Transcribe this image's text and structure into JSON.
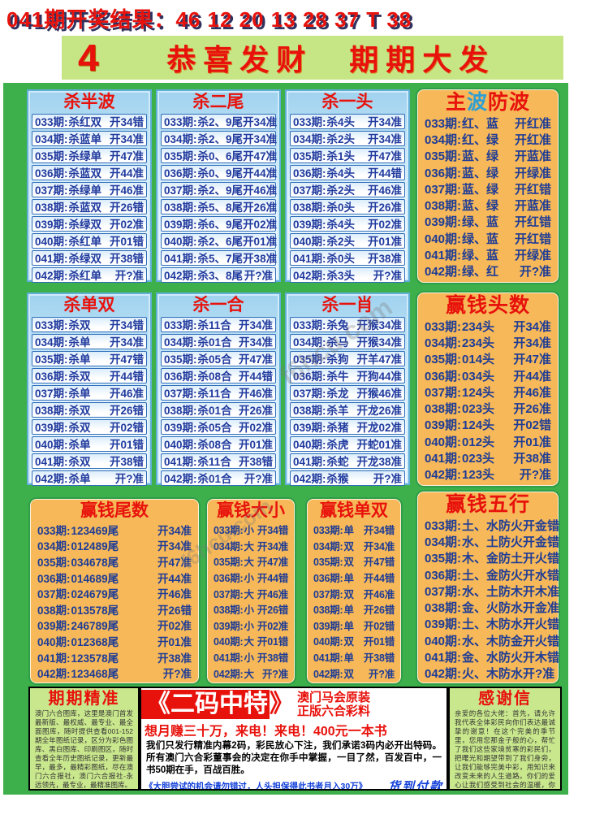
{
  "page": {
    "result_line": "041期开奖结果：46 12 20 13 28 37 T 38",
    "issue_number": "4",
    "header_title": "恭喜发财　期期大发"
  },
  "colors": {
    "accent_red": "#e8120c",
    "navy_text": "#1e3c96",
    "page_green": "#3db04b",
    "header_green": "#c6e585",
    "panel_blue": "#cfe9fb",
    "panel_orange": "#f6b858",
    "link_blue": "#1340d8"
  },
  "watermarks": [
    "f6hcu.com",
    "f6hcu.com"
  ],
  "panels": {
    "blue": [
      {
        "title": "杀半波",
        "rows": [
          {
            "p": "033期:",
            "k": "杀红双",
            "r": "开34错"
          },
          {
            "p": "034期:",
            "k": "杀蓝单",
            "r": "开34准"
          },
          {
            "p": "035期:",
            "k": "杀绿单",
            "r": "开47准"
          },
          {
            "p": "036期:",
            "k": "杀蓝双",
            "r": "开44准"
          },
          {
            "p": "037期:",
            "k": "杀绿单",
            "r": "开46准"
          },
          {
            "p": "038期:",
            "k": "杀蓝双",
            "r": "开26错"
          },
          {
            "p": "039期:",
            "k": "杀绿双",
            "r": "开02准"
          },
          {
            "p": "040期:",
            "k": "杀红单",
            "r": "开01错"
          },
          {
            "p": "041期:",
            "k": "杀绿双",
            "r": "开38错"
          },
          {
            "p": "042期:",
            "k": "杀红单",
            "r": "开?准"
          }
        ]
      },
      {
        "title": "杀二尾",
        "rows": [
          {
            "p": "033期:",
            "k": "杀2、9尾",
            "r": "开34准"
          },
          {
            "p": "034期:",
            "k": "杀2、9尾",
            "r": "开34准"
          },
          {
            "p": "035期:",
            "k": "杀0、6尾",
            "r": "开47准"
          },
          {
            "p": "036期:",
            "k": "杀0、9尾",
            "r": "开44准"
          },
          {
            "p": "037期:",
            "k": "杀2、9尾",
            "r": "开46准"
          },
          {
            "p": "038期:",
            "k": "杀5、8尾",
            "r": "开26准"
          },
          {
            "p": "039期:",
            "k": "杀6、9尾",
            "r": "开02准"
          },
          {
            "p": "040期:",
            "k": "杀2、6尾",
            "r": "开01准"
          },
          {
            "p": "041期:",
            "k": "杀5、7尾",
            "r": "开38准"
          },
          {
            "p": "042期:",
            "k": "杀3、8尾",
            "r": "开?准"
          }
        ]
      },
      {
        "title": "杀一头",
        "rows": [
          {
            "p": "033期:",
            "k": "杀4头",
            "r": "开34准"
          },
          {
            "p": "034期:",
            "k": "杀2头",
            "r": "开34准"
          },
          {
            "p": "035期:",
            "k": "杀1头",
            "r": "开47准"
          },
          {
            "p": "036期:",
            "k": "杀4头",
            "r": "开44错"
          },
          {
            "p": "037期:",
            "k": "杀2头",
            "r": "开46准"
          },
          {
            "p": "038期:",
            "k": "杀0头",
            "r": "开26准"
          },
          {
            "p": "039期:",
            "k": "杀4头",
            "r": "开02准"
          },
          {
            "p": "040期:",
            "k": "杀2头",
            "r": "开01准"
          },
          {
            "p": "041期:",
            "k": "杀0头",
            "r": "开38准"
          },
          {
            "p": "042期:",
            "k": "杀3头",
            "r": "开?准"
          }
        ]
      },
      {
        "title": "杀单双",
        "rows": [
          {
            "p": "033期:",
            "k": "杀双",
            "r": "开34错"
          },
          {
            "p": "034期:",
            "k": "杀单",
            "r": "开34准"
          },
          {
            "p": "035期:",
            "k": "杀单",
            "r": "开47错"
          },
          {
            "p": "036期:",
            "k": "杀双",
            "r": "开44错"
          },
          {
            "p": "037期:",
            "k": "杀单",
            "r": "开46准"
          },
          {
            "p": "038期:",
            "k": "杀双",
            "r": "开26错"
          },
          {
            "p": "039期:",
            "k": "杀双",
            "r": "开02错"
          },
          {
            "p": "040期:",
            "k": "杀单",
            "r": "开01错"
          },
          {
            "p": "041期:",
            "k": "杀双",
            "r": "开38错"
          },
          {
            "p": "042期:",
            "k": "杀单",
            "r": "开?准"
          }
        ]
      },
      {
        "title": "杀一合",
        "rows": [
          {
            "p": "033期:",
            "k": "杀11合",
            "r": "开34准"
          },
          {
            "p": "034期:",
            "k": "杀01合",
            "r": "开34准"
          },
          {
            "p": "035期:",
            "k": "杀05合",
            "r": "开47准"
          },
          {
            "p": "036期:",
            "k": "杀08合",
            "r": "开44错"
          },
          {
            "p": "037期:",
            "k": "杀11合",
            "r": "开46准"
          },
          {
            "p": "038期:",
            "k": "杀01合",
            "r": "开26准"
          },
          {
            "p": "039期:",
            "k": "杀05合",
            "r": "开02准"
          },
          {
            "p": "040期:",
            "k": "杀08合",
            "r": "开01准"
          },
          {
            "p": "041期:",
            "k": "杀11合",
            "r": "开38错"
          },
          {
            "p": "042期:",
            "k": "杀01合",
            "r": "开?准"
          }
        ]
      },
      {
        "title": "杀一肖",
        "rows": [
          {
            "p": "033期:",
            "k": "杀兔",
            "r": "开猴34准"
          },
          {
            "p": "034期:",
            "k": "杀马",
            "r": "开猴34准"
          },
          {
            "p": "035期:",
            "k": "杀狗",
            "r": "开羊47准"
          },
          {
            "p": "036期:",
            "k": "杀牛",
            "r": "开狗44准"
          },
          {
            "p": "037期:",
            "k": "杀龙",
            "r": "开猴46准"
          },
          {
            "p": "038期:",
            "k": "杀羊",
            "r": "开龙26准"
          },
          {
            "p": "039期:",
            "k": "杀猪",
            "r": "开龙02准"
          },
          {
            "p": "040期:",
            "k": "杀虎",
            "r": "开蛇01准"
          },
          {
            "p": "041期:",
            "k": "杀蛇",
            "r": "开龙38准"
          },
          {
            "p": "042期:",
            "k": "杀猴",
            "r": "开?准"
          }
        ]
      }
    ],
    "orange_right": [
      {
        "title": "主波防波",
        "title_parts": [
          {
            "t": "主",
            "c": "#e8120c"
          },
          {
            "t": "波",
            "c": "#2e9fd4"
          },
          {
            "t": "防",
            "c": "#e8120c"
          },
          {
            "t": "波",
            "c": "#e8120c"
          }
        ],
        "rows": [
          {
            "p": "033期:",
            "k": "红、蓝",
            "r": "开红准"
          },
          {
            "p": "034期:",
            "k": "红、绿",
            "r": "开红准"
          },
          {
            "p": "035期:",
            "k": "蓝、绿",
            "r": "开蓝准"
          },
          {
            "p": "036期:",
            "k": "蓝、绿",
            "r": "开绿准"
          },
          {
            "p": "037期:",
            "k": "蓝、绿",
            "r": "开红错"
          },
          {
            "p": "038期:",
            "k": "蓝、绿",
            "r": "开蓝准"
          },
          {
            "p": "039期:",
            "k": "绿、蓝",
            "r": "开红错"
          },
          {
            "p": "040期:",
            "k": "绿、蓝",
            "r": "开红错"
          },
          {
            "p": "041期:",
            "k": "绿、蓝",
            "r": "开绿准"
          },
          {
            "p": "042期:",
            "k": "绿、红",
            "r": "开?准"
          }
        ]
      },
      {
        "title": "赢钱头数",
        "rows": [
          {
            "p": "033期:",
            "k": "234头",
            "r": "开34准"
          },
          {
            "p": "034期:",
            "k": "234头",
            "r": "开34准"
          },
          {
            "p": "035期:",
            "k": "014头",
            "r": "开47准"
          },
          {
            "p": "036期:",
            "k": "034头",
            "r": "开44准"
          },
          {
            "p": "037期:",
            "k": "124头",
            "r": "开46准"
          },
          {
            "p": "038期:",
            "k": "023头",
            "r": "开26准"
          },
          {
            "p": "039期:",
            "k": "124头",
            "r": "开02错"
          },
          {
            "p": "040期:",
            "k": "012头",
            "r": "开01准"
          },
          {
            "p": "041期:",
            "k": "023头",
            "r": "开38准"
          },
          {
            "p": "042期:",
            "k": "123头",
            "r": "开?准"
          }
        ]
      },
      {
        "title": "赢钱五行",
        "rows": [
          {
            "p": "033期:",
            "k": "土、水防火",
            "r": "开金错"
          },
          {
            "p": "034期:",
            "k": "水、土防火",
            "r": "开金错"
          },
          {
            "p": "035期:",
            "k": "木、金防土",
            "r": "开火错"
          },
          {
            "p": "036期:",
            "k": "土、金防火",
            "r": "开水错"
          },
          {
            "p": "037期:",
            "k": "水、土防木",
            "r": "开木准"
          },
          {
            "p": "038期:",
            "k": "金、火防水",
            "r": "开金准"
          },
          {
            "p": "039期:",
            "k": "土、木防水",
            "r": "开火错"
          },
          {
            "p": "040期:",
            "k": "水、木防金",
            "r": "开火错"
          },
          {
            "p": "041期:",
            "k": "金、水防火",
            "r": "开木错"
          },
          {
            "p": "042期:",
            "k": "火、木防水",
            "r": "开?准"
          }
        ]
      }
    ],
    "orange_bottom": [
      {
        "title": "赢钱尾数",
        "rows": [
          {
            "p": "033期:",
            "k": "123469尾",
            "r": "开34准"
          },
          {
            "p": "034期:",
            "k": "012489尾",
            "r": "开34准"
          },
          {
            "p": "035期:",
            "k": "034678尾",
            "r": "开47准"
          },
          {
            "p": "036期:",
            "k": "014689尾",
            "r": "开44准"
          },
          {
            "p": "037期:",
            "k": "024679尾",
            "r": "开46准"
          },
          {
            "p": "038期:",
            "k": "013578尾",
            "r": "开26错"
          },
          {
            "p": "039期:",
            "k": "246789尾",
            "r": "开02准"
          },
          {
            "p": "040期:",
            "k": "012368尾",
            "r": "开01准"
          },
          {
            "p": "041期:",
            "k": "123578尾",
            "r": "开38准"
          },
          {
            "p": "042期:",
            "k": "123468尾",
            "r": "开?准"
          }
        ]
      },
      {
        "title": "赢钱大小",
        "rows": [
          {
            "p": "033期:",
            "k": "小",
            "r": "开34错"
          },
          {
            "p": "034期:",
            "k": "大",
            "r": "开34准"
          },
          {
            "p": "035期:",
            "k": "大",
            "r": "开47准"
          },
          {
            "p": "036期:",
            "k": "小",
            "r": "开44错"
          },
          {
            "p": "037期:",
            "k": "大",
            "r": "开46准"
          },
          {
            "p": "038期:",
            "k": "小",
            "r": "开26错"
          },
          {
            "p": "039期:",
            "k": "小",
            "r": "开02准"
          },
          {
            "p": "040期:",
            "k": "大",
            "r": "开01错"
          },
          {
            "p": "041期:",
            "k": "小",
            "r": "开38错"
          },
          {
            "p": "042期:",
            "k": "大",
            "r": "开?准"
          }
        ]
      },
      {
        "title": "赢钱单双",
        "rows": [
          {
            "p": "033期:",
            "k": "单",
            "r": "开34错"
          },
          {
            "p": "034期:",
            "k": "双",
            "r": "开34准"
          },
          {
            "p": "035期:",
            "k": "双",
            "r": "开47错"
          },
          {
            "p": "036期:",
            "k": "单",
            "r": "开44错"
          },
          {
            "p": "037期:",
            "k": "双",
            "r": "开46准"
          },
          {
            "p": "038期:",
            "k": "单",
            "r": "开26错"
          },
          {
            "p": "039期:",
            "k": "单",
            "r": "开02错"
          },
          {
            "p": "040期:",
            "k": "双",
            "r": "开01错"
          },
          {
            "p": "041期:",
            "k": "单",
            "r": "开38错"
          },
          {
            "p": "042期:",
            "k": "双",
            "r": "开?准"
          }
        ]
      }
    ]
  },
  "bottom": {
    "left": {
      "title": "期期精准",
      "body": "澳门六合图库，这里是澳门首发最新版、最权威、最专业、最全面图库，随时提供查看001-152期全年图纸记录，区分为彩色图库、黑白图库、印刷图区，随时查看全年历史图纸记录，更新最早，最多，最精彩图纸，尽在澳门六合报社，澳门六合报社-永远领先，最专业，最精准图库。"
    },
    "middle": {
      "banner": "《二码中特",
      "banner_close": "》",
      "side_line1": "澳门马会原装",
      "side_line2": "正版六合彩料",
      "hotline": "想月赚三十万，来电！来电！400元一本书",
      "body": "我们只发行精准内幕2码，彩民放心下注，我们承诺3码内必开出特码。所有澳门六合彩董事会的决定在你手中掌握，一目了然，百发百中，一书50期在手，百战百胜。",
      "note": "《大胆尝试的机会请勿错过，人头担保得此书者月入30万》",
      "payment": "货到付款"
    },
    "right": {
      "title": "感谢信",
      "body": "亲爱的各位大佬：首先，请允许我代表全体彩民向你们表达最诚挚的谢意！在这个完美的季节里，您用您那金子般的心，帮忙了我们这些家境贫寒的彩民们，把曙光和期望带到了我们身旁，让我们能够完美中彩，用知识来改变未来的人生道路。你们的爱心让我们感受到社会的温暖，你们的好彩免除了我们贫困的后顾之忧，让我们渴望新生活的心受感"
    }
  }
}
